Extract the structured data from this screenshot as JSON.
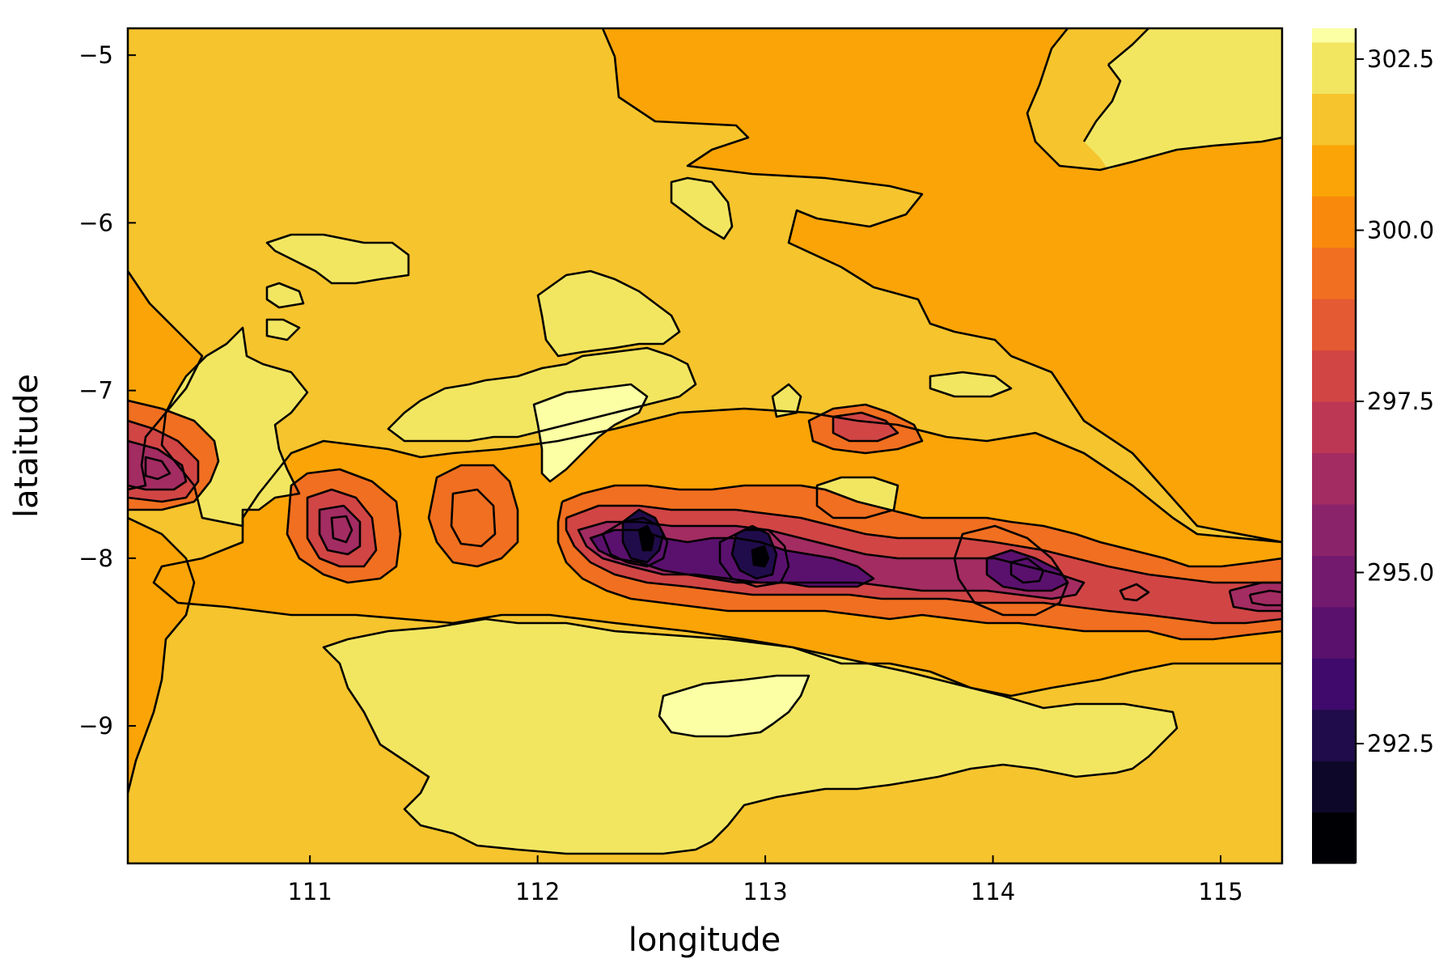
{
  "chart_data": {
    "type": "heatmap",
    "subtype": "filled-contour",
    "title": "",
    "xlabel": "longitude",
    "ylabel": "lataitude",
    "xlim": [
      110.2,
      115.27
    ],
    "ylim": [
      -9.82,
      -4.84
    ],
    "x_ticks": [
      111,
      112,
      113,
      114,
      115
    ],
    "x_tick_labels": [
      "111",
      "112",
      "113",
      "114",
      "115"
    ],
    "y_ticks": [
      -5,
      -6,
      -7,
      -8,
      -9
    ],
    "y_tick_labels": [
      "−5",
      "−6",
      "−7",
      "−8",
      "−9"
    ],
    "colorbar": {
      "range": [
        290.75,
        302.95
      ],
      "level_step": 0.75,
      "ticks": [
        302.5,
        300.0,
        297.5,
        295.0,
        292.5
      ],
      "tick_labels": [
        "302.5",
        "300.0",
        "297.5",
        "295.0",
        "292.5"
      ],
      "colormap": "inferno",
      "band_colors": [
        "#000004",
        "#0d0829",
        "#200c4b",
        "#3f0a6b",
        "#5a116e",
        "#731a6e",
        "#8b236b",
        "#a32c62",
        "#bc3754",
        "#d14545",
        "#e45a32",
        "#f16f20",
        "#f8890c",
        "#faa407",
        "#f6c42d",
        "#f2e661",
        "#fcffa4"
      ]
    },
    "background_value": 301.0,
    "features": [
      {
        "kind": "low",
        "lon": 112.5,
        "lat": -7.85,
        "value": 291.0
      },
      {
        "kind": "low",
        "lon": 112.98,
        "lat": -8.02,
        "value": 291.5
      },
      {
        "kind": "low",
        "lon": 114.1,
        "lat": -8.07,
        "value": 294.0
      },
      {
        "kind": "low",
        "lon": 110.4,
        "lat": -7.42,
        "value": 296.3
      },
      {
        "kind": "low",
        "lon": 111.15,
        "lat": -7.75,
        "value": 296.5
      },
      {
        "kind": "low",
        "lon": 111.7,
        "lat": -7.88,
        "value": 297.6
      },
      {
        "kind": "low",
        "lon": 113.45,
        "lat": -7.25,
        "value": 298.0
      },
      {
        "kind": "low",
        "lon": 115.22,
        "lat": -8.28,
        "value": 296.3
      },
      {
        "kind": "high",
        "lon": 112.1,
        "lat": -7.4,
        "value": 302.8
      },
      {
        "kind": "high",
        "lon": 112.95,
        "lat": -8.9,
        "value": 302.7
      }
    ]
  }
}
